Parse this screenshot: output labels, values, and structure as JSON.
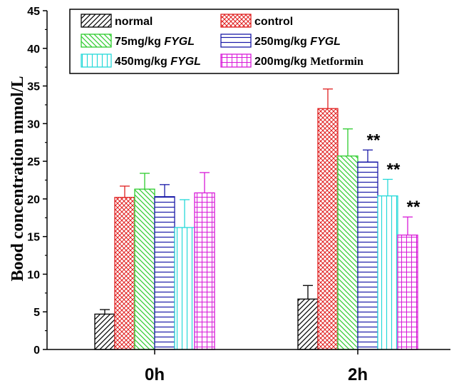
{
  "chart_data": {
    "type": "bar",
    "title": "",
    "xlabel": "",
    "ylabel": "Bood concentration mmol/L",
    "ylim": [
      0,
      45
    ],
    "yticks": [
      "0",
      "5",
      "10",
      "15",
      "20",
      "25",
      "30",
      "35",
      "40",
      "45"
    ],
    "grid": false,
    "legend_position": "top",
    "categories": [
      "0h",
      "2h"
    ],
    "series": [
      {
        "name": "normal",
        "dose": "",
        "drug": "",
        "drug_style": "",
        "color": "#000000",
        "pattern": "diag-right",
        "values": [
          4.7,
          6.7
        ],
        "errors": [
          0.6,
          1.8
        ],
        "significance": [
          "",
          ""
        ]
      },
      {
        "name": "control",
        "dose": "",
        "drug": "",
        "drug_style": "",
        "color": "#e02020",
        "pattern": "crosshatch",
        "values": [
          20.2,
          32.0
        ],
        "errors": [
          1.5,
          2.6
        ],
        "significance": [
          "",
          ""
        ]
      },
      {
        "name": "75mg/kg FYGL",
        "dose": "75mg/kg ",
        "drug": "FYGL",
        "drug_style": "italic",
        "color": "#2ecc2e",
        "pattern": "diag-left",
        "values": [
          21.3,
          25.7
        ],
        "errors": [
          2.1,
          3.6
        ],
        "significance": [
          "",
          ""
        ]
      },
      {
        "name": "250mg/kg FYGL",
        "dose": "250mg/kg ",
        "drug": "FYGL",
        "drug_style": "italic",
        "color": "#1a1aa8",
        "pattern": "horizontal",
        "values": [
          20.3,
          24.9
        ],
        "errors": [
          1.6,
          1.6
        ],
        "significance": [
          "",
          "**"
        ]
      },
      {
        "name": "450mg/kg FYGL",
        "dose": "450mg/kg ",
        "drug": "FYGL",
        "drug_style": "italic",
        "color": "#26d9d9",
        "pattern": "vertical",
        "values": [
          16.2,
          20.4
        ],
        "errors": [
          3.7,
          2.2
        ],
        "significance": [
          "",
          "**"
        ]
      },
      {
        "name": "200mg/kg Metformin",
        "dose": "200mg/kg ",
        "drug": "Metformin",
        "drug_style": "serif",
        "color": "#d81ad8",
        "pattern": "grid",
        "values": [
          20.8,
          15.2
        ],
        "errors": [
          2.7,
          2.4
        ],
        "significance": [
          "",
          "**"
        ]
      }
    ]
  }
}
